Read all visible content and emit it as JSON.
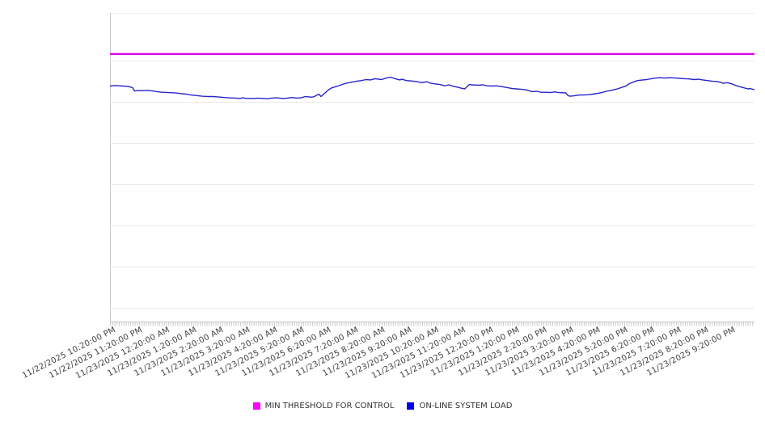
{
  "chart_data": {
    "type": "line",
    "title": "",
    "x_axis": {
      "tick_labels": [
        "11/22/2025 10:20:00 PM",
        "11/22/2025 11:20:00 PM",
        "11/23/2025 12:20:00 AM",
        "11/23/2025 1:20:00 AM",
        "11/23/2025 2:20:00 AM",
        "11/23/2025 3:20:00 AM",
        "11/23/2025 4:20:00 AM",
        "11/23/2025 5:20:00 AM",
        "11/23/2025 6:20:00 AM",
        "11/23/2025 7:20:00 AM",
        "11/23/2025 8:20:00 AM",
        "11/23/2025 9:20:00 AM",
        "11/23/2025 10:20:00 AM",
        "11/23/2025 11:20:00 AM",
        "11/23/2025 12:20:00 PM",
        "11/23/2025 1:20:00 PM",
        "11/23/2025 2:20:00 PM",
        "11/23/2025 3:20:00 PM",
        "11/23/2025 4:20:00 PM",
        "11/23/2025 5:20:00 PM",
        "11/23/2025 6:20:00 PM",
        "11/23/2025 7:20:00 PM",
        "11/23/2025 8:20:00 PM",
        "11/23/2025 9:20:00 PM"
      ],
      "label_rotation_deg": -27,
      "label_interval_minutes": 60,
      "minor_tick_count": 288,
      "range_minutes": [
        0,
        1435
      ]
    },
    "y_axis": {
      "tick_labels_visible": false,
      "gridline_count": 7,
      "y_encoding": "percent_of_plot_height"
    },
    "legend": {
      "position": "bottom-center",
      "items": [
        {
          "label": "MIN THRESHOLD FOR CONTROL",
          "color": "#FF00FF"
        },
        {
          "label": "ON-LINE SYSTEM LOAD",
          "color": "#0000EE"
        }
      ]
    },
    "series": [
      {
        "name": "MIN THRESHOLD FOR CONTROL",
        "type": "threshold-line",
        "color": "#E000E0",
        "value_pct": 86.6
      },
      {
        "name": "ON-LINE SYSTEM LOAD",
        "type": "line",
        "color": "#2525CC",
        "points_t_min_v_pct": [
          [
            0,
            76.3
          ],
          [
            10,
            76.5
          ],
          [
            20,
            76.4
          ],
          [
            30,
            76.3
          ],
          [
            40,
            76.2
          ],
          [
            50,
            75.8
          ],
          [
            55,
            74.7
          ],
          [
            65,
            74.9
          ],
          [
            70,
            74.8
          ],
          [
            85,
            74.9
          ],
          [
            95,
            74.7
          ],
          [
            105,
            74.5
          ],
          [
            115,
            74.3
          ],
          [
            130,
            74.2
          ],
          [
            145,
            74.1
          ],
          [
            155,
            73.9
          ],
          [
            170,
            73.7
          ],
          [
            180,
            73.4
          ],
          [
            195,
            73.2
          ],
          [
            205,
            73.0
          ],
          [
            220,
            72.9
          ],
          [
            230,
            72.9
          ],
          [
            240,
            72.8
          ],
          [
            255,
            72.6
          ],
          [
            265,
            72.5
          ],
          [
            280,
            72.4
          ],
          [
            290,
            72.3
          ],
          [
            295,
            72.5
          ],
          [
            305,
            72.3
          ],
          [
            320,
            72.3
          ],
          [
            330,
            72.4
          ],
          [
            340,
            72.3
          ],
          [
            350,
            72.2
          ],
          [
            360,
            72.4
          ],
          [
            370,
            72.5
          ],
          [
            385,
            72.3
          ],
          [
            395,
            72.4
          ],
          [
            405,
            72.6
          ],
          [
            415,
            72.4
          ],
          [
            425,
            72.5
          ],
          [
            435,
            72.9
          ],
          [
            450,
            72.7
          ],
          [
            455,
            72.9
          ],
          [
            465,
            73.7
          ],
          [
            470,
            72.9
          ],
          [
            485,
            74.9
          ],
          [
            495,
            75.8
          ],
          [
            505,
            76.2
          ],
          [
            515,
            76.7
          ],
          [
            525,
            77.2
          ],
          [
            540,
            77.6
          ],
          [
            550,
            77.9
          ],
          [
            560,
            78.1
          ],
          [
            570,
            78.4
          ],
          [
            580,
            78.3
          ],
          [
            590,
            78.7
          ],
          [
            605,
            78.4
          ],
          [
            615,
            78.9
          ],
          [
            625,
            79.2
          ],
          [
            635,
            78.7
          ],
          [
            645,
            78.3
          ],
          [
            650,
            78.5
          ],
          [
            660,
            78.1
          ],
          [
            675,
            77.9
          ],
          [
            685,
            77.7
          ],
          [
            695,
            77.4
          ],
          [
            705,
            77.7
          ],
          [
            715,
            77.2
          ],
          [
            725,
            77.0
          ],
          [
            735,
            76.8
          ],
          [
            745,
            76.4
          ],
          [
            755,
            76.7
          ],
          [
            765,
            76.2
          ],
          [
            775,
            75.9
          ],
          [
            785,
            75.5
          ],
          [
            790,
            75.4
          ],
          [
            800,
            76.8
          ],
          [
            805,
            76.7
          ],
          [
            820,
            76.6
          ],
          [
            830,
            76.7
          ],
          [
            840,
            76.4
          ],
          [
            850,
            76.3
          ],
          [
            860,
            76.4
          ],
          [
            870,
            76.2
          ],
          [
            885,
            75.8
          ],
          [
            895,
            75.5
          ],
          [
            905,
            75.4
          ],
          [
            915,
            75.3
          ],
          [
            925,
            75.1
          ],
          [
            935,
            74.7
          ],
          [
            940,
            74.5
          ],
          [
            950,
            74.6
          ],
          [
            960,
            74.3
          ],
          [
            970,
            74.3
          ],
          [
            980,
            74.2
          ],
          [
            990,
            74.4
          ],
          [
            1000,
            74.2
          ],
          [
            1015,
            74.1
          ],
          [
            1020,
            73.2
          ],
          [
            1025,
            73.0
          ],
          [
            1035,
            73.2
          ],
          [
            1045,
            73.4
          ],
          [
            1055,
            73.4
          ],
          [
            1065,
            73.5
          ],
          [
            1075,
            73.7
          ],
          [
            1085,
            73.9
          ],
          [
            1095,
            74.2
          ],
          [
            1105,
            74.6
          ],
          [
            1115,
            74.9
          ],
          [
            1130,
            75.4
          ],
          [
            1140,
            75.9
          ],
          [
            1150,
            76.4
          ],
          [
            1155,
            77.0
          ],
          [
            1165,
            77.6
          ],
          [
            1175,
            78.1
          ],
          [
            1180,
            78.2
          ],
          [
            1195,
            78.4
          ],
          [
            1205,
            78.7
          ],
          [
            1215,
            78.9
          ],
          [
            1225,
            79.0
          ],
          [
            1235,
            78.9
          ],
          [
            1245,
            79.0
          ],
          [
            1260,
            78.9
          ],
          [
            1270,
            78.8
          ],
          [
            1280,
            78.7
          ],
          [
            1290,
            78.6
          ],
          [
            1300,
            78.4
          ],
          [
            1310,
            78.5
          ],
          [
            1320,
            78.3
          ],
          [
            1330,
            78.1
          ],
          [
            1340,
            77.9
          ],
          [
            1350,
            77.8
          ],
          [
            1360,
            77.5
          ],
          [
            1365,
            77.2
          ],
          [
            1375,
            77.4
          ],
          [
            1385,
            77.0
          ],
          [
            1395,
            76.4
          ],
          [
            1400,
            76.2
          ],
          [
            1410,
            75.8
          ],
          [
            1420,
            75.4
          ],
          [
            1425,
            75.5
          ],
          [
            1435,
            75.1
          ]
        ]
      }
    ]
  }
}
